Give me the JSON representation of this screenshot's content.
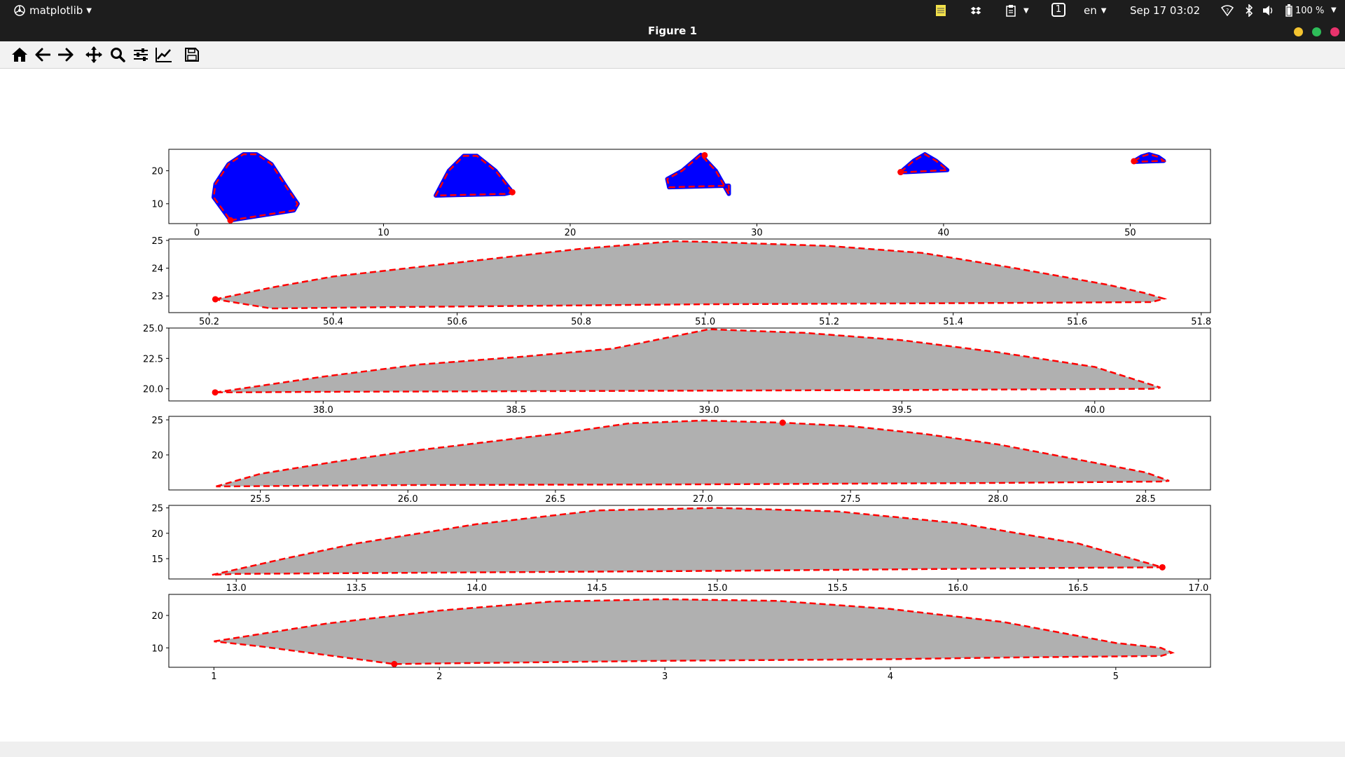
{
  "topbar": {
    "app_name": "matplotlib",
    "datetime": "Sep 17  03:02",
    "language": "en",
    "workspace": "1",
    "battery": "100 %"
  },
  "window": {
    "title": "Figure 1",
    "controls": {
      "minimize_color": "#f4c430",
      "maximize_color": "#2ebd59",
      "close_color": "#e8336d"
    }
  },
  "toolbar": {
    "icons": [
      "home-icon",
      "back-icon",
      "forward-icon",
      "pan-icon",
      "zoom-icon",
      "configure-subplots-icon",
      "edit-axis-icon",
      "save-icon"
    ]
  },
  "colors": {
    "polygon_fill": "#b0b0b0",
    "outline": "#ff0000",
    "points": "#0000ff",
    "marker": "#ff0000"
  },
  "chart_data": [
    {
      "type": "scatter",
      "xlim": [
        -1.5,
        54.3
      ],
      "ylim": [
        4,
        26.5
      ],
      "xticks": [
        0,
        10,
        20,
        30,
        40,
        50
      ],
      "yticks": [
        10,
        20
      ],
      "shapes": [
        {
          "outline": [
            [
              1.8,
              5
            ],
            [
              5.2,
              8
            ],
            [
              5.4,
              10
            ],
            [
              4.8,
              15
            ],
            [
              4,
              22
            ],
            [
              3.2,
              25
            ],
            [
              2.5,
              25
            ],
            [
              1.7,
              22
            ],
            [
              1,
              16
            ],
            [
              0.9,
              12
            ],
            [
              1.8,
              5
            ]
          ],
          "marker": [
            1.8,
            5
          ]
        },
        {
          "outline": [
            [
              16.9,
              13.5
            ],
            [
              16,
              20
            ],
            [
              15,
              24.5
            ],
            [
              14.3,
              24.5
            ],
            [
              13.5,
              20
            ],
            [
              12.8,
              12.5
            ],
            [
              16.5,
              13
            ],
            [
              16.9,
              13.5
            ]
          ],
          "marker": [
            16.9,
            13.5
          ]
        },
        {
          "outline": [
            [
              28.5,
              13
            ],
            [
              27.8,
              20
            ],
            [
              27,
              24.8
            ],
            [
              26,
              20
            ],
            [
              25.2,
              17.5
            ],
            [
              25.3,
              15
            ],
            [
              28.5,
              15.5
            ],
            [
              28.5,
              13
            ]
          ],
          "marker": [
            27.2,
            24.7
          ]
        },
        {
          "outline": [
            [
              37.7,
              19.6
            ],
            [
              38.4,
              23
            ],
            [
              39,
              25
            ],
            [
              39.6,
              23
            ],
            [
              40.2,
              20.2
            ],
            [
              38,
              19.6
            ],
            [
              37.7,
              19.6
            ]
          ],
          "marker": [
            37.7,
            19.6
          ]
        },
        {
          "outline": [
            [
              50.2,
              22.9
            ],
            [
              50.6,
              24.3
            ],
            [
              51,
              25
            ],
            [
              51.5,
              24.2
            ],
            [
              51.8,
              23
            ],
            [
              50.2,
              22.7
            ]
          ],
          "marker": [
            50.2,
            22.9
          ]
        }
      ]
    },
    {
      "type": "area",
      "xlim": [
        50.135,
        51.815
      ],
      "ylim": [
        22.4,
        25.05
      ],
      "xticks": [
        50.2,
        50.4,
        50.6,
        50.8,
        51.0,
        51.2,
        51.4,
        51.6,
        51.8
      ],
      "yticks": [
        23,
        24,
        25
      ],
      "x": [
        50.21,
        50.3,
        50.4,
        50.6,
        50.8,
        50.95,
        51.0,
        51.2,
        51.35,
        51.5,
        51.65,
        51.71,
        51.74,
        51.72,
        51.5,
        51.2,
        51.0,
        50.8,
        50.5,
        50.3,
        50.21
      ],
      "y": [
        22.88,
        23.3,
        23.7,
        24.2,
        24.7,
        24.97,
        24.95,
        24.8,
        24.55,
        24.0,
        23.4,
        23.1,
        22.9,
        22.78,
        22.75,
        22.72,
        22.7,
        22.66,
        22.6,
        22.55,
        22.88
      ],
      "marker": [
        50.21,
        22.88
      ]
    },
    {
      "type": "area",
      "xlim": [
        37.6,
        40.3
      ],
      "ylim": [
        19.0,
        25.0
      ],
      "xticks": [
        38.0,
        38.5,
        39.0,
        39.5,
        40.0
      ],
      "yticks": [
        20.0,
        22.5,
        25.0
      ],
      "x": [
        37.72,
        38.0,
        38.25,
        38.5,
        38.75,
        39.0,
        39.25,
        39.5,
        39.75,
        40.0,
        40.17,
        40.15,
        39.5,
        39.0,
        38.5,
        38.0,
        37.72
      ],
      "y": [
        19.7,
        21.0,
        22.0,
        22.6,
        23.3,
        24.9,
        24.6,
        24.0,
        23.0,
        21.8,
        20.1,
        20.0,
        19.9,
        19.85,
        19.8,
        19.75,
        19.7
      ],
      "marker": [
        37.72,
        19.7
      ]
    },
    {
      "type": "area",
      "xlim": [
        25.19,
        28.72
      ],
      "ylim": [
        15.0,
        25.5
      ],
      "xticks": [
        25.5,
        26.0,
        26.5,
        27.0,
        27.5,
        28.0,
        28.5
      ],
      "yticks": [
        20,
        25
      ],
      "x": [
        25.35,
        25.5,
        25.75,
        26.0,
        26.5,
        26.75,
        27.0,
        27.27,
        27.5,
        27.75,
        28.0,
        28.25,
        28.5,
        28.58,
        28.55,
        28.0,
        27.0,
        26.0,
        25.35
      ],
      "y": [
        15.5,
        17.3,
        19.0,
        20.5,
        23.0,
        24.5,
        24.9,
        24.6,
        24.1,
        23.0,
        21.5,
        19.5,
        17.5,
        16.3,
        16.2,
        16.0,
        15.8,
        15.7,
        15.5
      ],
      "marker": [
        27.27,
        24.6
      ]
    },
    {
      "type": "area",
      "xlim": [
        12.72,
        17.05
      ],
      "ylim": [
        11.0,
        25.5
      ],
      "xticks": [
        13.0,
        13.5,
        14.0,
        14.5,
        15.0,
        15.5,
        16.0,
        16.5,
        17.0
      ],
      "yticks": [
        15,
        20,
        25
      ],
      "x": [
        12.9,
        13.2,
        13.5,
        14.0,
        14.5,
        15.0,
        15.5,
        16.0,
        16.5,
        16.85,
        16.5,
        16.0,
        15.0,
        14.0,
        13.0,
        12.9
      ],
      "y": [
        11.8,
        15.0,
        18.0,
        21.8,
        24.5,
        25.0,
        24.3,
        22.0,
        18.0,
        13.3,
        13.2,
        13.0,
        12.6,
        12.3,
        12.0,
        11.8
      ],
      "marker": [
        16.85,
        13.3
      ]
    },
    {
      "type": "area",
      "xlim": [
        0.8,
        5.42
      ],
      "ylim": [
        4.0,
        26.5
      ],
      "xticks": [
        1,
        2,
        3,
        4,
        5
      ],
      "yticks": [
        10,
        20
      ],
      "x": [
        1.0,
        1.5,
        2.0,
        2.5,
        3.0,
        3.5,
        4.0,
        4.5,
        5.0,
        5.2,
        5.25,
        5.2,
        4.5,
        4.0,
        3.0,
        2.0,
        1.8,
        1.2,
        1.0
      ],
      "y": [
        12.0,
        17.5,
        21.5,
        24.3,
        25.0,
        24.5,
        22.0,
        18.0,
        11.5,
        10.0,
        8.5,
        7.5,
        7.0,
        6.5,
        6.0,
        5.2,
        5.0,
        10.5,
        12.0
      ],
      "marker": [
        1.8,
        5.0
      ]
    }
  ]
}
